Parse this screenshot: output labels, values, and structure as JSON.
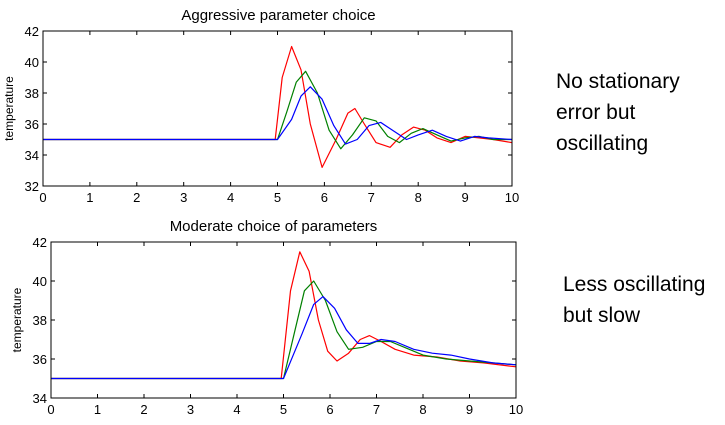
{
  "annotations": [
    "No stationary\nerror but\noscillating",
    "Less oscillating\nbut slow"
  ],
  "chart_data": [
    {
      "type": "line",
      "title": "Aggressive parameter choice",
      "xlabel": "",
      "ylabel": "temperature",
      "xlim": [
        0,
        10
      ],
      "ylim": [
        32,
        42
      ],
      "xticks": [
        0,
        1,
        2,
        3,
        4,
        5,
        6,
        7,
        8,
        9,
        10
      ],
      "yticks": [
        32,
        34,
        36,
        38,
        40,
        42
      ],
      "grid": false,
      "series": [
        {
          "color": "#ff0000",
          "x": [
            0,
            4.95,
            5.1,
            5.3,
            5.5,
            5.7,
            5.95,
            6.25,
            6.5,
            6.65,
            6.85,
            7.1,
            7.4,
            7.65,
            7.9,
            8.15,
            8.4,
            8.7,
            9.0,
            9.3,
            9.6,
            10
          ],
          "y": [
            35,
            35,
            39.0,
            41.0,
            39.5,
            36.0,
            33.2,
            35.0,
            36.7,
            37.0,
            36.0,
            34.8,
            34.5,
            35.3,
            35.8,
            35.6,
            35.1,
            34.8,
            35.2,
            35.1,
            35.0,
            34.8
          ]
        },
        {
          "color": "#008000",
          "x": [
            0,
            5.0,
            5.2,
            5.4,
            5.6,
            5.85,
            6.1,
            6.35,
            6.6,
            6.85,
            7.1,
            7.35,
            7.6,
            7.85,
            8.1,
            8.4,
            8.7,
            9.0,
            9.3,
            9.6,
            10
          ],
          "y": [
            35,
            35,
            36.8,
            38.7,
            39.4,
            38.0,
            35.6,
            34.4,
            35.3,
            36.4,
            36.2,
            35.2,
            34.8,
            35.4,
            35.7,
            35.3,
            34.9,
            35.1,
            35.2,
            35.0,
            35.0
          ]
        },
        {
          "color": "#0000ff",
          "x": [
            0,
            5.0,
            5.3,
            5.5,
            5.7,
            5.95,
            6.2,
            6.45,
            6.7,
            6.95,
            7.2,
            7.5,
            7.75,
            8.0,
            8.3,
            8.6,
            8.9,
            9.2,
            9.5,
            10
          ],
          "y": [
            35,
            35,
            36.3,
            37.8,
            38.4,
            37.6,
            35.9,
            34.7,
            35.0,
            35.9,
            36.1,
            35.5,
            35.0,
            35.3,
            35.6,
            35.2,
            34.9,
            35.2,
            35.1,
            35.0
          ]
        }
      ]
    },
    {
      "type": "line",
      "title": "Moderate choice of parameters",
      "xlabel": "",
      "ylabel": "temperature",
      "xlim": [
        0,
        10
      ],
      "ylim": [
        34,
        42
      ],
      "xticks": [
        0,
        1,
        2,
        3,
        4,
        5,
        6,
        7,
        8,
        9,
        10
      ],
      "yticks": [
        34,
        36,
        38,
        40,
        42
      ],
      "grid": false,
      "series": [
        {
          "color": "#ff0000",
          "x": [
            0,
            4.95,
            5.15,
            5.35,
            5.55,
            5.75,
            5.95,
            6.15,
            6.4,
            6.65,
            6.85,
            7.1,
            7.4,
            7.8,
            8.3,
            8.8,
            9.3,
            10
          ],
          "y": [
            35,
            35,
            39.5,
            41.5,
            40.5,
            38.0,
            36.4,
            35.9,
            36.3,
            37.0,
            37.2,
            36.9,
            36.5,
            36.2,
            36.1,
            35.9,
            35.8,
            35.6
          ]
        },
        {
          "color": "#008000",
          "x": [
            0,
            5.0,
            5.25,
            5.45,
            5.65,
            5.9,
            6.15,
            6.4,
            6.7,
            7.0,
            7.3,
            7.6,
            8.0,
            8.5,
            9.0,
            9.5,
            10
          ],
          "y": [
            35,
            35,
            37.5,
            39.5,
            40.0,
            39.0,
            37.4,
            36.5,
            36.6,
            36.9,
            36.9,
            36.6,
            36.2,
            36.0,
            35.9,
            35.8,
            35.7
          ]
        },
        {
          "color": "#0000ff",
          "x": [
            0,
            5.0,
            5.4,
            5.65,
            5.85,
            6.1,
            6.35,
            6.6,
            6.85,
            7.1,
            7.4,
            7.8,
            8.2,
            8.6,
            9.0,
            9.5,
            10
          ],
          "y": [
            35,
            35,
            37.3,
            38.8,
            39.2,
            38.6,
            37.5,
            36.8,
            36.8,
            37.0,
            36.9,
            36.5,
            36.3,
            36.2,
            36.0,
            35.8,
            35.7
          ]
        }
      ]
    }
  ]
}
